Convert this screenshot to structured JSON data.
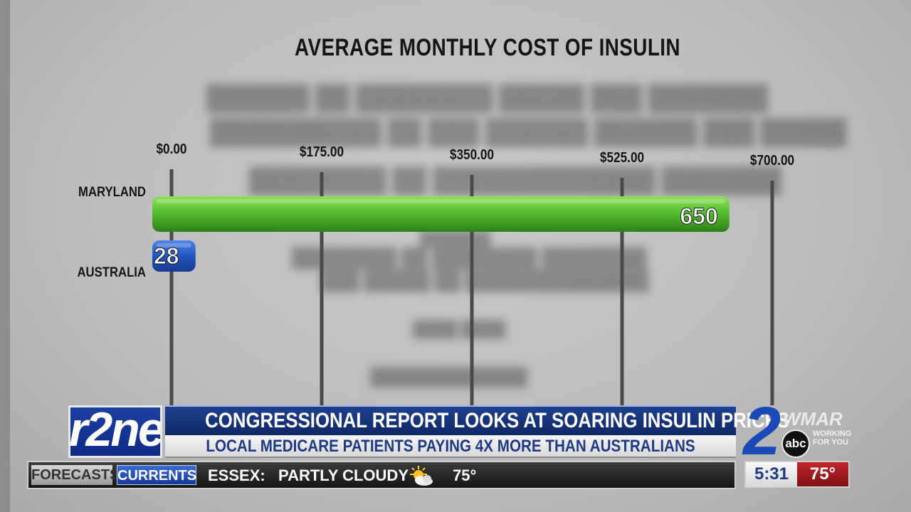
{
  "chart_data": {
    "type": "bar",
    "orientation": "horizontal",
    "title": "AVERAGE MONTHLY COST OF INSULIN",
    "categories": [
      "MARYLAND",
      "AUSTRALIA"
    ],
    "values": [
      650,
      28
    ],
    "value_labels": [
      "650",
      "28"
    ],
    "xlim": [
      0,
      700
    ],
    "x_ticks": [
      0,
      175,
      350,
      525,
      700
    ],
    "x_tick_labels": [
      "$0.00",
      "$175.00",
      "$350.00",
      "$525.00",
      "$700.00"
    ],
    "xlabel": "",
    "ylabel": "",
    "grid": true,
    "legend": "none",
    "colors": {
      "MARYLAND": "#4fb82e",
      "AUSTRALIA": "#2b5fc9"
    }
  },
  "lower_third": {
    "show_logo_text": "r2ne",
    "headline": "CONGRESSIONAL REPORT LOOKS AT SOARING INSULIN PRICES",
    "subheadline": "LOCAL MEDICARE PATIENTS PAYING 4X MORE THAN AUSTRALIANS",
    "station": {
      "channel": "2",
      "network": "abc",
      "name": "WMAR",
      "tagline_1": "WORKING",
      "tagline_2": "FOR YOU"
    }
  },
  "ticker": {
    "tab_forecasts": "FORECASTS",
    "tab_currents": "CURRENTS",
    "location": "ESSEX:",
    "condition": "PARTLY CLOUDY",
    "weather_icon": "partly-cloudy-icon",
    "temperature": "75°"
  },
  "clock": {
    "time": "5:31",
    "temperature": "75°"
  }
}
